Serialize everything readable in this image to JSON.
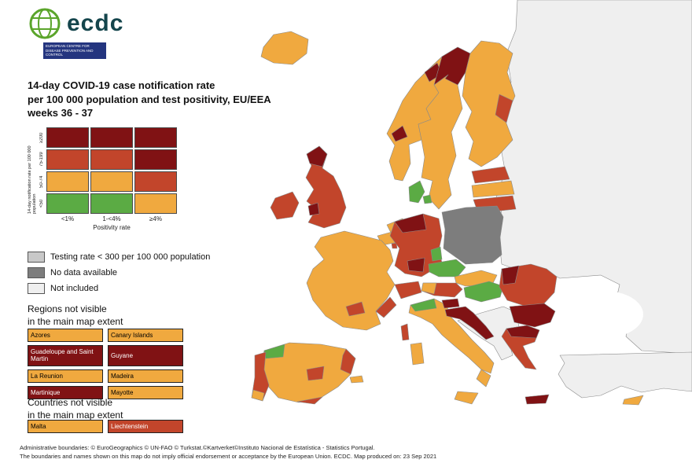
{
  "logo": {
    "name": "ecdc",
    "subtitle": "EUROPEAN CENTRE FOR DISEASE PREVENTION AND CONTROL"
  },
  "title": {
    "line1": "14-day COVID-19 case notification rate",
    "line2": "per 100 000 population and test positivity, EU/EEA",
    "line3": "weeks 36 - 37"
  },
  "matrix": {
    "y_axis_label": "14-day notification rate per 100 000 population",
    "x_axis_label": "Positivity rate",
    "row_labels": [
      "≥200",
      "75-199",
      "50-74",
      "<50"
    ],
    "col_labels": [
      "<1%",
      "1-<4%",
      "≥4%"
    ],
    "rows": [
      [
        "darkred",
        "darkred",
        "darkred"
      ],
      [
        "red",
        "red",
        "darkred"
      ],
      [
        "orange",
        "orange",
        "red"
      ],
      [
        "green",
        "green",
        "orange"
      ]
    ]
  },
  "colors": {
    "green": "#5BAB44",
    "orange": "#F0A93F",
    "red": "#C2452B",
    "darkred": "#801214",
    "testing": "#C8C8C8",
    "nodata": "#7D7D7D",
    "notincluded": "#EFEFEF",
    "sea": "#FFFFFF"
  },
  "legend_items": [
    {
      "key": "testing",
      "label": "Testing rate < 300 per 100 000 population"
    },
    {
      "key": "nodata",
      "label": "No data available"
    },
    {
      "key": "notincluded",
      "label": "Not included"
    }
  ],
  "regions_section": {
    "heading_line1": "Regions not visible",
    "heading_line2": "in the main map extent",
    "items": [
      {
        "label": "Azores",
        "color": "orange"
      },
      {
        "label": "Canary Islands",
        "color": "orange"
      },
      {
        "label": "Guadeloupe and Saint Martin",
        "color": "darkred"
      },
      {
        "label": "Guyane",
        "color": "darkred"
      },
      {
        "label": "La Reunion",
        "color": "orange"
      },
      {
        "label": "Madeira",
        "color": "orange"
      },
      {
        "label": "Martinique",
        "color": "darkred"
      },
      {
        "label": "Mayotte",
        "color": "orange"
      }
    ]
  },
  "countries_section": {
    "heading_line1": "Countries not visible",
    "heading_line2": "in the main map extent",
    "items": [
      {
        "label": "Malta",
        "color": "orange"
      },
      {
        "label": "Liechtenstein",
        "color": "red"
      }
    ]
  },
  "footer": {
    "line1": "Administrative boundaries: © EuroGeographics © UN-FAO © Turkstat.©Kartverket©Instituto Nacional de Estatística - Statistics Portugal.",
    "line2": "The boundaries and names shown on this map do not imply official endorsement or acceptance by the European Union. ECDC. Map produced on: 23 Sep 2021"
  },
  "map": {
    "region_colors": {
      "east_land": "notincluded",
      "turkey": "notincluded",
      "west_balkans": "notincluded",
      "kaliningrad": "notincluded",
      "black_sea": "sea",
      "iceland": "orange",
      "norway": "orange",
      "norway_patch_1": "darkred",
      "norway_patch_2": "darkred",
      "sweden": "orange",
      "sweden_north": "darkred",
      "finland": "orange",
      "finland_patch": "red",
      "estonia": "red",
      "latvia": "orange",
      "lithuania": "red",
      "denmark": "green",
      "denmark_isle": "green",
      "uk": "red",
      "uk_scotland": "darkred",
      "uk_wales": "darkred",
      "ireland": "red",
      "netherlands": "orange",
      "belgium": "orange",
      "luxembourg": "red",
      "germany": "red",
      "germany_patch_north": "darkred",
      "germany_patch_south": "darkred",
      "germany_patch_green": "green",
      "poland": "nodata",
      "czechia": "green",
      "slovakia": "orange",
      "austria": "red",
      "austria_patch": "orange",
      "switzerland": "red",
      "france": "orange",
      "france_patch_se": "red",
      "france_patch_s": "red",
      "corsica": "red",
      "spain": "orange",
      "spain_patch_nw": "green",
      "spain_patch_e": "red",
      "spain_patch_s": "red",
      "spain_patch_c": "red",
      "balearics": "orange",
      "portugal": "red",
      "portugal_patch": "orange",
      "italy": "orange",
      "italy_patch_green": "green",
      "calabria": "orange",
      "sicily": "orange",
      "sardinia": "orange",
      "slovenia": "darkred",
      "croatia": "darkred",
      "hungary": "green",
      "romania": "red",
      "romania_patch": "darkred",
      "bulgaria": "darkred",
      "greece": "red",
      "greece_patch": "darkred",
      "crete": "darkred",
      "cyprus": "orange"
    }
  }
}
